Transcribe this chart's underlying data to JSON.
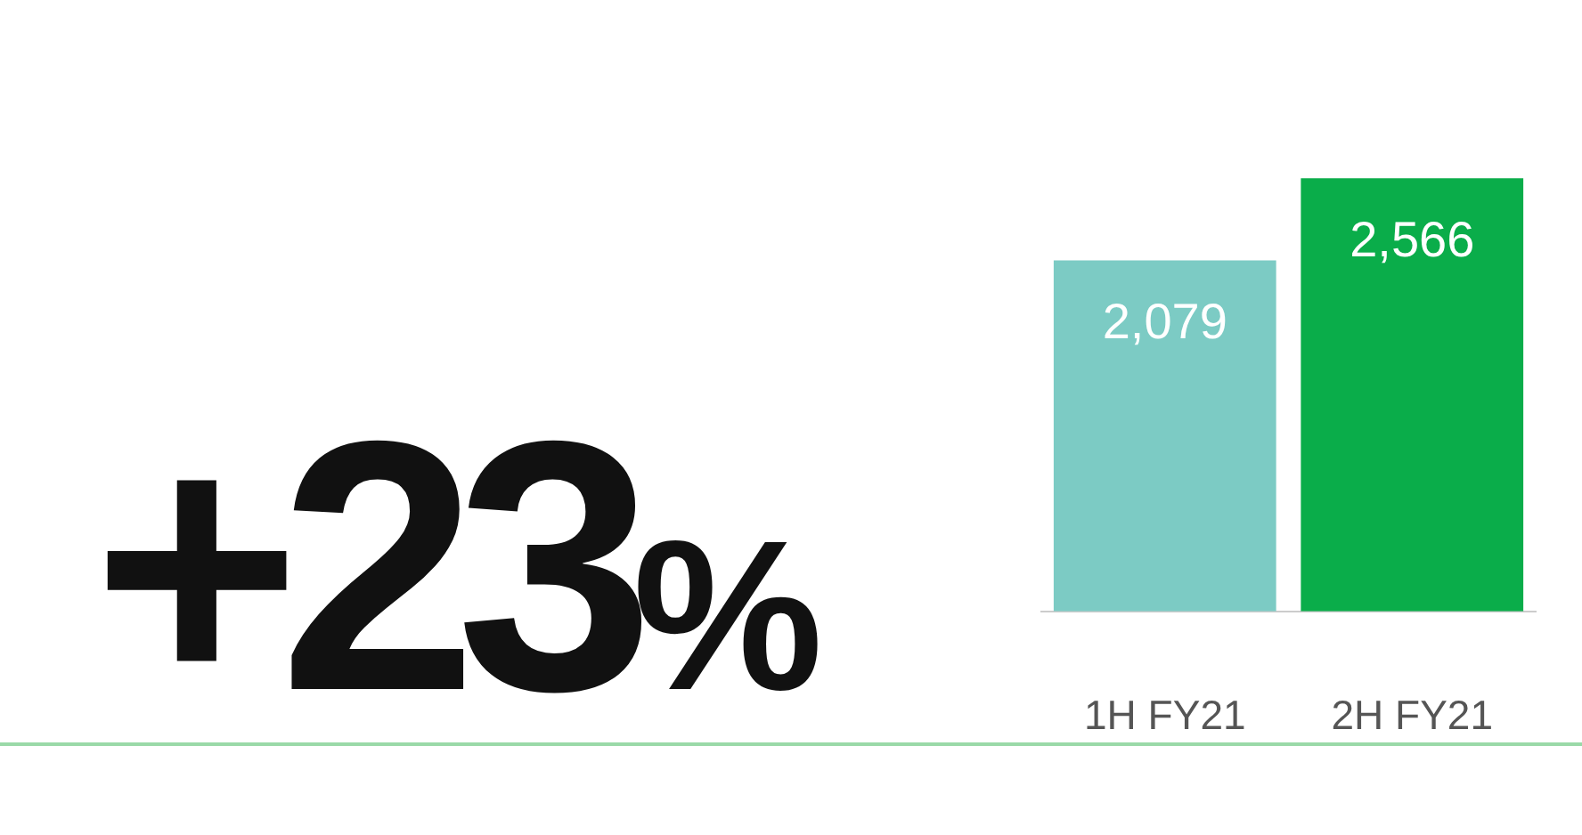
{
  "chart_data": {
    "type": "bar",
    "categories": [
      "1H FY21",
      "2H FY21"
    ],
    "values": [
      2079,
      2566
    ],
    "colors": [
      "#7ccbc4",
      "#0aad4a"
    ],
    "data_labels": true,
    "value_labels": [
      "2,079",
      "2,566"
    ],
    "annotations": [
      "+23%"
    ],
    "grid": false,
    "legend": false,
    "tick_labels": "x"
  }
}
